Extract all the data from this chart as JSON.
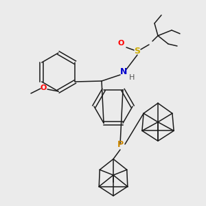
{
  "background_color": "#ebebeb",
  "figsize": [
    3.0,
    3.0
  ],
  "dpi": 100,
  "line_color": "#1a1a1a",
  "line_width": 1.1,
  "atom_colors": {
    "O": "#ff0000",
    "S": "#ccaa00",
    "N": "#0000cc",
    "P": "#cc8800",
    "H": "#555555",
    "C": "#1a1a1a"
  }
}
